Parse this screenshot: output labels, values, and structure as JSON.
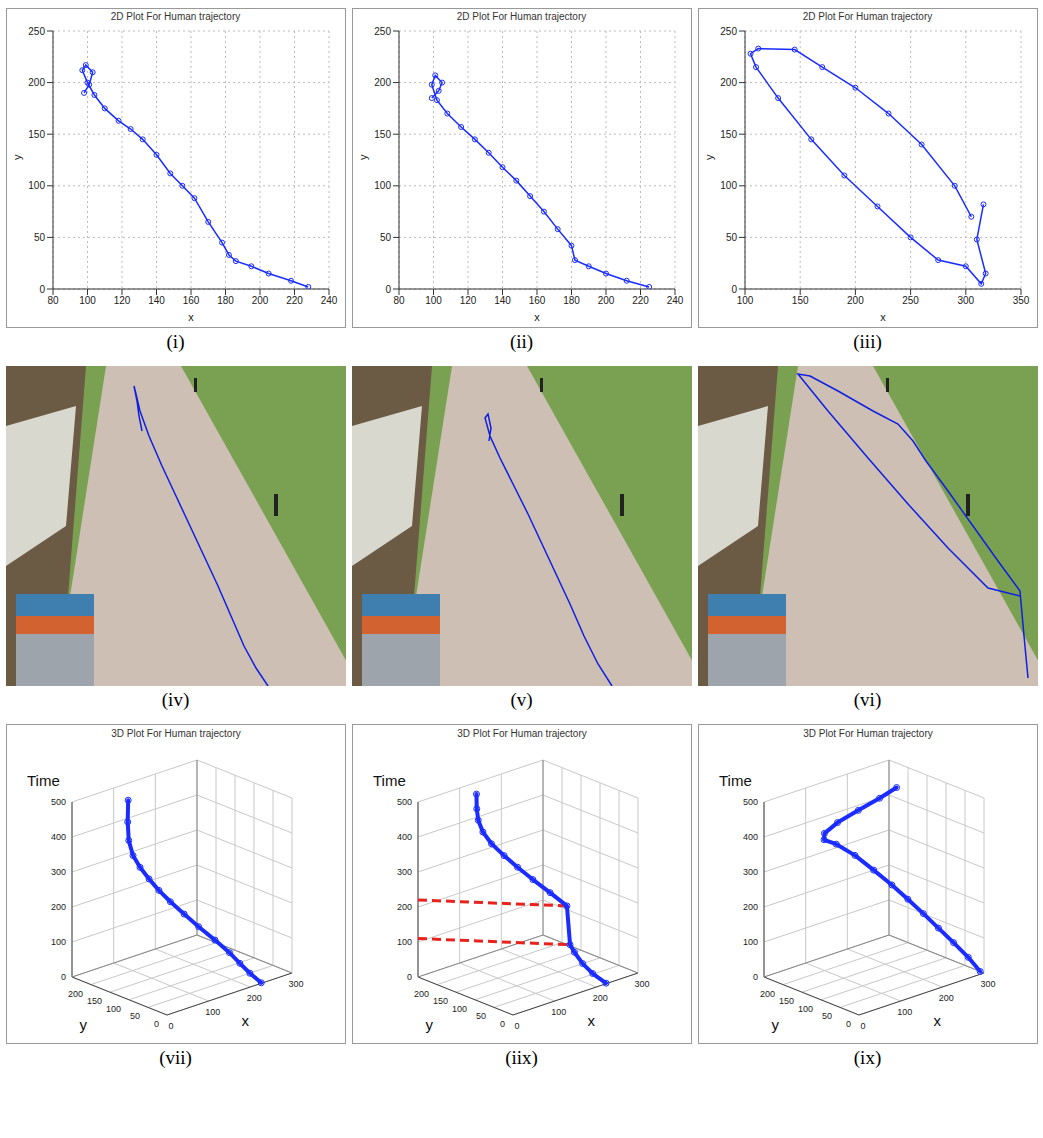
{
  "chart_data": [
    {
      "type": "line",
      "title": "2D Plot For Human trajectory",
      "caption": "(i)",
      "x_label": "x",
      "y_label": "y",
      "color": "#1a2cff",
      "marker": "circle",
      "line_style": "solid",
      "grid": true,
      "xlim": [
        80,
        240
      ],
      "xticks": [
        80,
        100,
        120,
        140,
        160,
        180,
        200,
        220,
        240
      ],
      "ylim": [
        0,
        250
      ],
      "yticks": [
        0,
        50,
        100,
        150,
        200,
        250
      ],
      "x": [
        228,
        218,
        205,
        195,
        186,
        182,
        178,
        170,
        162,
        155,
        148,
        140,
        132,
        125,
        118,
        110,
        104,
        100,
        97,
        99,
        103,
        101,
        98
      ],
      "values": [
        2,
        8,
        15,
        22,
        27,
        33,
        45,
        65,
        88,
        100,
        112,
        130,
        145,
        155,
        163,
        175,
        188,
        200,
        212,
        217,
        210,
        198,
        190
      ]
    },
    {
      "type": "line",
      "title": "2D Plot For Human trajectory",
      "caption": "(ii)",
      "x_label": "x",
      "y_label": "y",
      "color": "#1a2cff",
      "marker": "circle",
      "line_style": "solid",
      "grid": true,
      "xlim": [
        80,
        240
      ],
      "xticks": [
        80,
        100,
        120,
        140,
        160,
        180,
        200,
        220,
        240
      ],
      "ylim": [
        0,
        250
      ],
      "yticks": [
        0,
        50,
        100,
        150,
        200,
        250
      ],
      "x": [
        225,
        212,
        200,
        190,
        182,
        180,
        172,
        164,
        156,
        148,
        140,
        132,
        124,
        116,
        108,
        102,
        99,
        101,
        105,
        103,
        99
      ],
      "values": [
        2,
        8,
        15,
        22,
        28,
        42,
        58,
        75,
        90,
        105,
        118,
        132,
        145,
        157,
        170,
        183,
        198,
        207,
        200,
        192,
        185
      ]
    },
    {
      "type": "line",
      "title": "2D Plot For Human trajectory",
      "caption": "(iii)",
      "x_label": "x",
      "y_label": "y",
      "color": "#1a2cff",
      "marker": "circle",
      "line_style": "solid",
      "grid": true,
      "xlim": [
        100,
        350
      ],
      "xticks": [
        100,
        150,
        200,
        250,
        300,
        350
      ],
      "ylim": [
        0,
        250
      ],
      "yticks": [
        0,
        50,
        100,
        150,
        200,
        250
      ],
      "x": [
        316,
        310,
        318,
        314,
        300,
        275,
        250,
        220,
        190,
        160,
        130,
        110,
        105,
        112,
        145,
        170,
        200,
        230,
        260,
        290,
        305
      ],
      "values": [
        82,
        48,
        15,
        5,
        22,
        28,
        50,
        80,
        110,
        145,
        185,
        215,
        228,
        233,
        232,
        215,
        195,
        170,
        140,
        100,
        70
      ]
    },
    {
      "type": "trajectory_overlay",
      "caption": "(iv)",
      "color": "#1020e0",
      "marker": "none",
      "line_style": "solid",
      "tick_labels": false,
      "xlim": [
        0,
        340
      ],
      "ylim": [
        0,
        320
      ],
      "x": [
        262,
        250,
        238,
        225,
        212,
        198,
        184,
        170,
        156,
        143,
        134,
        130,
        128,
        131,
        133,
        136
      ],
      "values": [
        0,
        18,
        40,
        70,
        100,
        130,
        160,
        190,
        220,
        250,
        275,
        292,
        300,
        285,
        270,
        255
      ]
    },
    {
      "type": "trajectory_overlay",
      "caption": "(v)",
      "color": "#1020e0",
      "marker": "none",
      "line_style": "solid",
      "tick_labels": false,
      "xlim": [
        0,
        340
      ],
      "ylim": [
        0,
        320
      ],
      "x": [
        260,
        246,
        232,
        218,
        204,
        190,
        176,
        162,
        148,
        138,
        133,
        136,
        139,
        137
      ],
      "values": [
        0,
        22,
        50,
        82,
        112,
        142,
        172,
        200,
        228,
        250,
        268,
        272,
        258,
        245
      ]
    },
    {
      "type": "trajectory_overlay",
      "caption": "(vi)",
      "color": "#1020e0",
      "marker": "none",
      "line_style": "solid",
      "tick_labels": false,
      "xlim": [
        0,
        340
      ],
      "ylim": [
        0,
        320
      ],
      "x": [
        330,
        326,
        322,
        300,
        275,
        250,
        228,
        215,
        200,
        175,
        140,
        112,
        100,
        130,
        170,
        210,
        250,
        290,
        322
      ],
      "values": [
        8,
        50,
        95,
        125,
        160,
        195,
        225,
        245,
        262,
        275,
        295,
        310,
        312,
        275,
        228,
        182,
        138,
        98,
        90
      ]
    },
    {
      "type": "line3d",
      "title": "3D Plot For Human trajectory",
      "caption": "(vii)",
      "x_label": "x",
      "y_label": "y",
      "z_label": "Time",
      "color": "#1a2cff",
      "marker": "circle",
      "line_style": "solid",
      "grid": true,
      "xlim": [
        0,
        300
      ],
      "xticks": [
        0,
        100,
        200,
        300
      ],
      "ylim": [
        0,
        250
      ],
      "yticks": [
        0,
        50,
        100,
        150,
        200
      ],
      "zlim": [
        0,
        500
      ],
      "zticks": [
        0,
        100,
        200,
        300,
        400,
        500
      ],
      "x": [
        228,
        210,
        195,
        182,
        170,
        158,
        146,
        134,
        122,
        112,
        104,
        99,
        97,
        99,
        102
      ],
      "y": [
        2,
        12,
        22,
        35,
        60,
        90,
        115,
        138,
        155,
        170,
        185,
        198,
        207,
        212,
        214
      ],
      "time": [
        0,
        30,
        60,
        90,
        120,
        150,
        180,
        210,
        240,
        270,
        300,
        330,
        370,
        420,
        480
      ]
    },
    {
      "type": "line3d",
      "title": "3D Plot For Human trajectory",
      "caption": "(iix)",
      "x_label": "x",
      "y_label": "y",
      "z_label": "Time",
      "color": "#1a2cff",
      "marker": "circle",
      "line_style": "solid",
      "grid": true,
      "xlim": [
        0,
        300
      ],
      "xticks": [
        0,
        100,
        200,
        300
      ],
      "ylim": [
        0,
        250
      ],
      "yticks": [
        0,
        50,
        100,
        150,
        200
      ],
      "zlim": [
        0,
        500
      ],
      "zticks": [
        0,
        100,
        200,
        300,
        400,
        500
      ],
      "x": [
        225,
        205,
        190,
        182,
        178,
        175,
        162,
        148,
        134,
        120,
        108,
        101,
        99,
        100,
        102
      ],
      "y": [
        2,
        15,
        25,
        38,
        45,
        50,
        80,
        110,
        135,
        155,
        175,
        190,
        200,
        205,
        208
      ],
      "time": [
        0,
        30,
        60,
        90,
        110,
        220,
        250,
        280,
        310,
        340,
        370,
        400,
        430,
        460,
        500
      ],
      "highlight_times": [
        110,
        220
      ],
      "highlight_color": "#e8231e"
    },
    {
      "type": "line3d",
      "title": "3D Plot For Human trajectory",
      "caption": "(ix)",
      "x_label": "x",
      "y_label": "y",
      "z_label": "Time",
      "color": "#1a2cff",
      "marker": "circle",
      "line_style": "solid",
      "grid": true,
      "xlim": [
        0,
        300
      ],
      "xticks": [
        0,
        100,
        200,
        300
      ],
      "ylim": [
        0,
        250
      ],
      "yticks": [
        0,
        50,
        100,
        150,
        200
      ],
      "zlim": [
        0,
        500
      ],
      "zticks": [
        0,
        100,
        200,
        300,
        400,
        500
      ],
      "x": [
        300,
        285,
        268,
        250,
        232,
        213,
        193,
        172,
        150,
        128,
        115,
        125,
        160,
        210,
        260,
        300
      ],
      "y": [
        10,
        25,
        45,
        65,
        85,
        105,
        125,
        150,
        175,
        200,
        218,
        228,
        232,
        232,
        231,
        230
      ],
      "time": [
        0,
        40,
        80,
        120,
        160,
        200,
        240,
        280,
        320,
        350,
        360,
        370,
        385,
        400,
        415,
        430
      ]
    }
  ]
}
